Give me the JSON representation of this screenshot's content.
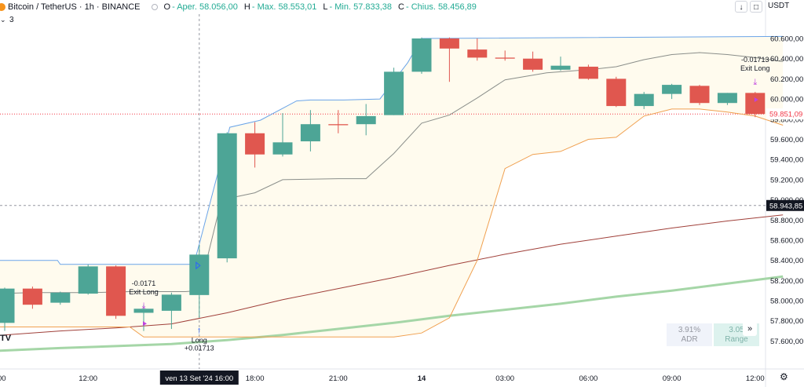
{
  "header": {
    "symbol": "Bitcoin / TetherUS · 1h · BINANCE",
    "ohlc": [
      {
        "label": "O",
        "value": "- Aper. 58.056,00"
      },
      {
        "label": "H",
        "value": "- Max. 58.553,01"
      },
      {
        "label": "L",
        "value": "- Min. 57.833,38"
      },
      {
        "label": "C",
        "value": "- Chius. 58.456,89"
      }
    ],
    "indicator_count": "3",
    "chevron_icon": "chevron-down-icon"
  },
  "toolbar": {
    "collapse_icon": "arrow-down-icon",
    "fullscreen_icon": "square-icon"
  },
  "currency": "USDT",
  "stats": {
    "adr_value": "3.91%",
    "adr_label": "ADR",
    "range_value": "3.05",
    "range_label": "Range",
    "expand_icon": "chevrons-right-icon"
  },
  "colors": {
    "up": "#4da596",
    "down": "#e0574f",
    "upper_band": "#6aa4e8",
    "mid_band": "#8a8e8a",
    "lower_band": "#f0a050",
    "ma_long": "#a0403a",
    "ma_green": "#a5d6a7",
    "last_price": "#131722",
    "current_price": "#f23645"
  },
  "chart_data": {
    "type": "candlestick",
    "y_ticks": [
      "57.600,00",
      "57.800,00",
      "58.000,00",
      "58.200,00",
      "58.400,00",
      "58.600,00",
      "58.800,00",
      "59.000,00",
      "59.200,00",
      "59.400,00",
      "59.600,00",
      "59.800,00",
      "60.000,00",
      "60.200,00",
      "60.400,00",
      "60.600,00"
    ],
    "ylim": [
      57440,
      60740
    ],
    "x_ticks": [
      {
        "label": "12:00",
        "i": 3
      },
      {
        "label": "18:00",
        "i": 9
      },
      {
        "label": "21:00",
        "i": 12
      },
      {
        "label": "14",
        "i": 15,
        "bold": true
      },
      {
        "label": "03:00",
        "i": 18
      },
      {
        "label": "06:00",
        "i": 21
      },
      {
        "label": "09:00",
        "i": 24
      },
      {
        "label": "12:00",
        "i": 27
      }
    ],
    "crosshair": {
      "i": 7,
      "time_label": "ven 13 Set '24   16:00",
      "price": 58943.85,
      "price_label": "58.943,85"
    },
    "current_price": {
      "price": 59851.09,
      "label": "59.851,09"
    },
    "candles": [
      {
        "o": 57780,
        "h": 58130,
        "l": 57700,
        "c": 58120
      },
      {
        "o": 58120,
        "h": 58140,
        "l": 57920,
        "c": 57960
      },
      {
        "o": 57980,
        "h": 58090,
        "l": 57960,
        "c": 58080
      },
      {
        "o": 58070,
        "h": 58360,
        "l": 58060,
        "c": 58340
      },
      {
        "o": 58340,
        "h": 58350,
        "l": 57820,
        "c": 57850
      },
      {
        "o": 57880,
        "h": 57960,
        "l": 57700,
        "c": 57920
      },
      {
        "o": 57900,
        "h": 58080,
        "l": 57720,
        "c": 58060
      },
      {
        "o": 58056,
        "h": 58553.01,
        "l": 57833.38,
        "c": 58456.89
      },
      {
        "o": 58420,
        "h": 59670,
        "l": 58380,
        "c": 59660
      },
      {
        "o": 59660,
        "h": 59770,
        "l": 59320,
        "c": 59450
      },
      {
        "o": 59450,
        "h": 59860,
        "l": 59430,
        "c": 59570
      },
      {
        "o": 59580,
        "h": 59890,
        "l": 59480,
        "c": 59750
      },
      {
        "o": 59750,
        "h": 59890,
        "l": 59660,
        "c": 59740
      },
      {
        "o": 59750,
        "h": 59950,
        "l": 59640,
        "c": 59830
      },
      {
        "o": 59840,
        "h": 60310,
        "l": 59840,
        "c": 60270
      },
      {
        "o": 60270,
        "h": 60610,
        "l": 60250,
        "c": 60600
      },
      {
        "o": 60600,
        "h": 60610,
        "l": 60170,
        "c": 60500
      },
      {
        "o": 60490,
        "h": 60600,
        "l": 60380,
        "c": 60410
      },
      {
        "o": 60410,
        "h": 60480,
        "l": 60380,
        "c": 60400
      },
      {
        "o": 60400,
        "h": 60470,
        "l": 60270,
        "c": 60290
      },
      {
        "o": 60290,
        "h": 60420,
        "l": 60280,
        "c": 60330
      },
      {
        "o": 60320,
        "h": 60340,
        "l": 60190,
        "c": 60200
      },
      {
        "o": 60200,
        "h": 60220,
        "l": 59920,
        "c": 59930
      },
      {
        "o": 59930,
        "h": 60070,
        "l": 59900,
        "c": 60050
      },
      {
        "o": 60050,
        "h": 60150,
        "l": 60000,
        "c": 60140
      },
      {
        "o": 60130,
        "h": 60140,
        "l": 59940,
        "c": 59960
      },
      {
        "o": 59960,
        "h": 60060,
        "l": 59940,
        "c": 60060
      },
      {
        "o": 60060,
        "h": 60070,
        "l": 59820,
        "c": 59851.09
      }
    ],
    "upper_band": [
      {
        "i": -0.5,
        "v": 58400
      },
      {
        "i": 1.9,
        "v": 58400
      },
      {
        "i": 2,
        "v": 58360
      },
      {
        "i": 3.5,
        "v": 58360
      },
      {
        "i": 6.8,
        "v": 58360
      },
      {
        "i": 7,
        "v": 58560
      },
      {
        "i": 8.1,
        "v": 59720
      },
      {
        "i": 9.2,
        "v": 59790
      },
      {
        "i": 10.5,
        "v": 59980
      },
      {
        "i": 11,
        "v": 59990
      },
      {
        "i": 12.2,
        "v": 59990
      },
      {
        "i": 13.5,
        "v": 60000
      },
      {
        "i": 14.5,
        "v": 60360
      },
      {
        "i": 15,
        "v": 60600
      },
      {
        "i": 28,
        "v": 60620
      }
    ],
    "mid_band": [
      {
        "i": -0.5,
        "v": 58070
      },
      {
        "i": 1,
        "v": 58080
      },
      {
        "i": 3,
        "v": 58080
      },
      {
        "i": 4.5,
        "v": 58090
      },
      {
        "i": 6.5,
        "v": 58090
      },
      {
        "i": 7,
        "v": 58100
      },
      {
        "i": 7.8,
        "v": 59000
      },
      {
        "i": 9,
        "v": 59070
      },
      {
        "i": 10,
        "v": 59200
      },
      {
        "i": 12,
        "v": 59210
      },
      {
        "i": 13,
        "v": 59210
      },
      {
        "i": 14,
        "v": 59460
      },
      {
        "i": 15,
        "v": 59760
      },
      {
        "i": 16,
        "v": 59840
      },
      {
        "i": 17,
        "v": 60010
      },
      {
        "i": 18,
        "v": 60190
      },
      {
        "i": 19.5,
        "v": 60260
      },
      {
        "i": 21,
        "v": 60290
      },
      {
        "i": 22,
        "v": 60320
      },
      {
        "i": 23,
        "v": 60390
      },
      {
        "i": 24,
        "v": 60440
      },
      {
        "i": 25,
        "v": 60460
      },
      {
        "i": 26,
        "v": 60440
      },
      {
        "i": 27,
        "v": 60410
      },
      {
        "i": 28,
        "v": 60370
      }
    ],
    "lower_band": [
      {
        "i": -0.5,
        "v": 57740
      },
      {
        "i": 4.5,
        "v": 57740
      },
      {
        "i": 5,
        "v": 57640
      },
      {
        "i": 14,
        "v": 57640
      },
      {
        "i": 15,
        "v": 57680
      },
      {
        "i": 16,
        "v": 57830
      },
      {
        "i": 17,
        "v": 58400
      },
      {
        "i": 18,
        "v": 59310
      },
      {
        "i": 19,
        "v": 59450
      },
      {
        "i": 20,
        "v": 59480
      },
      {
        "i": 21,
        "v": 59600
      },
      {
        "i": 22,
        "v": 59620
      },
      {
        "i": 23,
        "v": 59830
      },
      {
        "i": 24,
        "v": 59900
      },
      {
        "i": 25,
        "v": 59900
      },
      {
        "i": 26,
        "v": 59870
      },
      {
        "i": 27,
        "v": 59830
      },
      {
        "i": 28,
        "v": 59740
      }
    ],
    "ma_long": [
      {
        "i": -0.5,
        "v": 57650
      },
      {
        "i": 2,
        "v": 57700
      },
      {
        "i": 4,
        "v": 57730
      },
      {
        "i": 6,
        "v": 57770
      },
      {
        "i": 8,
        "v": 57880
      },
      {
        "i": 10,
        "v": 58010
      },
      {
        "i": 12,
        "v": 58120
      },
      {
        "i": 14,
        "v": 58230
      },
      {
        "i": 16,
        "v": 58350
      },
      {
        "i": 18,
        "v": 58460
      },
      {
        "i": 20,
        "v": 58560
      },
      {
        "i": 22,
        "v": 58640
      },
      {
        "i": 24,
        "v": 58720
      },
      {
        "i": 26,
        "v": 58790
      },
      {
        "i": 28,
        "v": 58850
      }
    ],
    "ma_green": [
      {
        "i": -0.5,
        "v": 57500
      },
      {
        "i": 2,
        "v": 57530
      },
      {
        "i": 4,
        "v": 57550
      },
      {
        "i": 6,
        "v": 57570
      },
      {
        "i": 8,
        "v": 57610
      },
      {
        "i": 10,
        "v": 57660
      },
      {
        "i": 12,
        "v": 57720
      },
      {
        "i": 14,
        "v": 57780
      },
      {
        "i": 16,
        "v": 57850
      },
      {
        "i": 18,
        "v": 57910
      },
      {
        "i": 20,
        "v": 57970
      },
      {
        "i": 22,
        "v": 58040
      },
      {
        "i": 24,
        "v": 58100
      },
      {
        "i": 26,
        "v": 58170
      },
      {
        "i": 28,
        "v": 58240
      }
    ],
    "annotations": [
      {
        "type": "exit",
        "i": 5,
        "price": 57960,
        "lines": [
          "-0.0171",
          "Exit Long"
        ]
      },
      {
        "type": "long",
        "i": 7,
        "price": 57800,
        "lines": [
          "Long",
          "+0.01713"
        ]
      },
      {
        "type": "exit",
        "i": 27,
        "price": 60180,
        "lines": [
          "-0.01713",
          "Exit Long"
        ]
      }
    ]
  }
}
